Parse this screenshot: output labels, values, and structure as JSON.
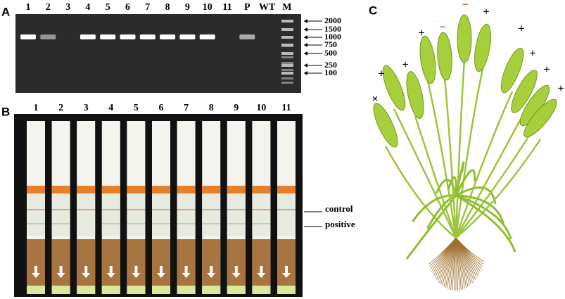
{
  "panels": {
    "a": {
      "label": "A",
      "lanes": [
        "1",
        "2",
        "3",
        "4",
        "5",
        "6",
        "7",
        "8",
        "9",
        "10",
        "11",
        "P",
        "WT",
        "M"
      ],
      "ladder": [
        2000,
        1500,
        1000,
        750,
        500,
        250,
        100
      ]
    },
    "b": {
      "label": "B",
      "strips": [
        "1",
        "2",
        "3",
        "4",
        "5",
        "6",
        "7",
        "8",
        "9",
        "10",
        "11"
      ],
      "lines": [
        "control",
        "positive"
      ]
    },
    "c": {
      "label": "C",
      "marks": [
        "×",
        "+",
        "+",
        "+",
        "−",
        "−",
        "+",
        "+",
        "+",
        "+",
        "+"
      ]
    }
  }
}
